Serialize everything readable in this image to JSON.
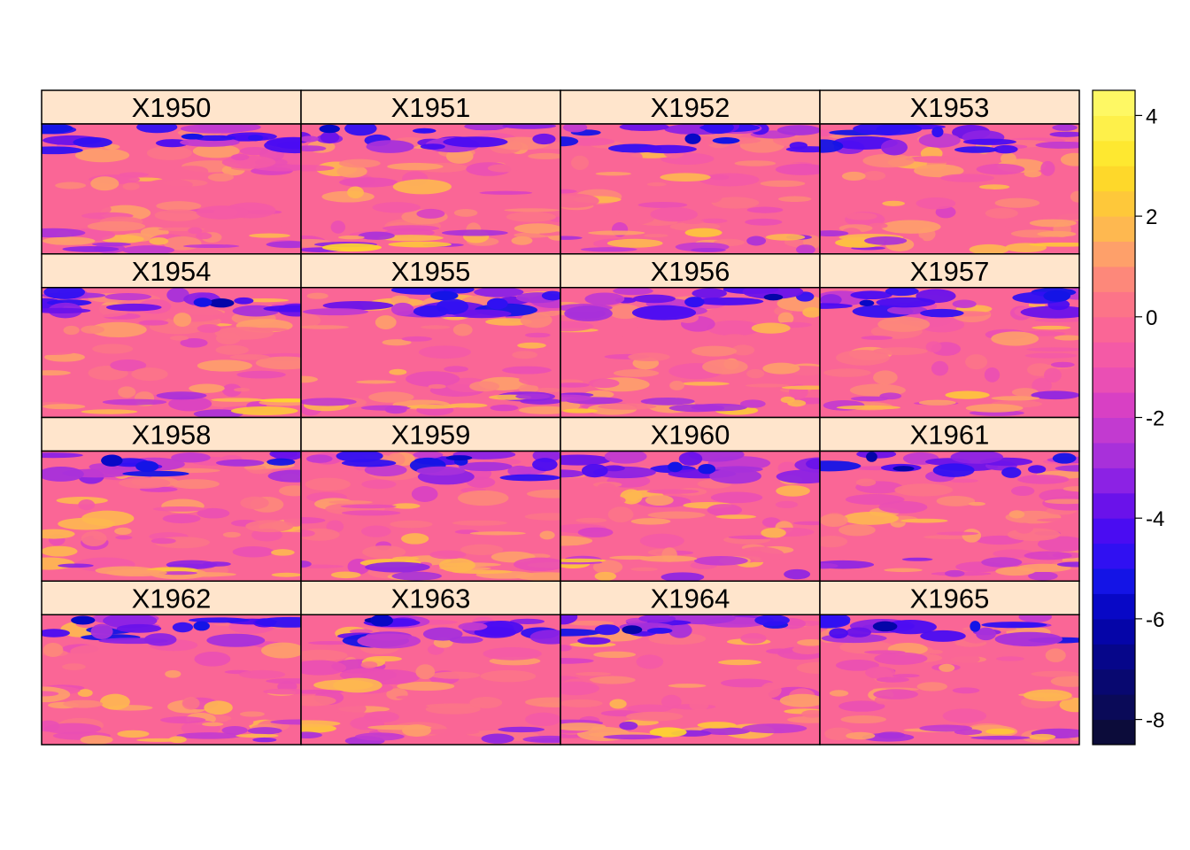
{
  "chart_data": {
    "type": "heatmap",
    "layout": {
      "columns": 4,
      "rows": 4
    },
    "panels": [
      {
        "label": "X1950"
      },
      {
        "label": "X1951"
      },
      {
        "label": "X1952"
      },
      {
        "label": "X1953"
      },
      {
        "label": "X1954"
      },
      {
        "label": "X1955"
      },
      {
        "label": "X1956"
      },
      {
        "label": "X1957"
      },
      {
        "label": "X1958"
      },
      {
        "label": "X1959"
      },
      {
        "label": "X1960"
      },
      {
        "label": "X1961"
      },
      {
        "label": "X1962"
      },
      {
        "label": "X1963"
      },
      {
        "label": "X1964"
      },
      {
        "label": "X1965"
      }
    ],
    "colorbar": {
      "range": [
        -8.5,
        4.5
      ],
      "step": 0.5,
      "tick_values": [
        4,
        2,
        0,
        -2,
        -4,
        -6,
        -8
      ],
      "tick_labels": [
        "4",
        "2",
        "0",
        "-2",
        "-4",
        "-6",
        "-8"
      ],
      "colors_low_to_high": [
        "#0c0c3a",
        "#0a0a58",
        "#080870",
        "#06068a",
        "#0505a8",
        "#0808c6",
        "#1414e6",
        "#3010f2",
        "#4a0cf2",
        "#6a12ea",
        "#8c22e4",
        "#a830da",
        "#c23ad0",
        "#d840c4",
        "#ea4fb4",
        "#f45aa6",
        "#fa6696",
        "#fc7488",
        "#fd887a",
        "#fea06a",
        "#feb850",
        "#fec83a",
        "#fed82a",
        "#fee830",
        "#fef04a",
        "#fef864"
      ]
    },
    "strip_background": "#ffe5cc",
    "grid": false
  }
}
